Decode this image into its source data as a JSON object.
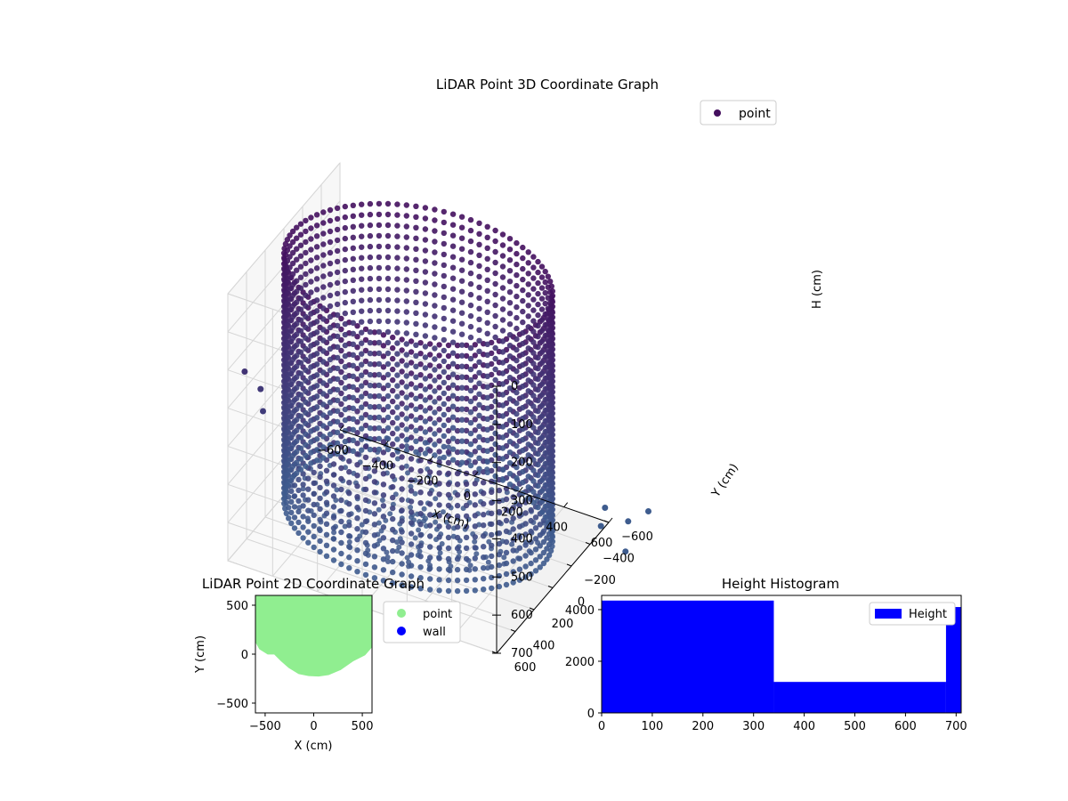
{
  "chart_data": [
    {
      "id": "lidar-3d",
      "type": "scatter",
      "title": "LiDAR Point 3D Coordinate Graph",
      "xlabel": "X (cm)",
      "ylabel": "Y (cm)",
      "zlabel": "H (cm)",
      "xlim": [
        -600,
        600
      ],
      "ylim": [
        -600,
        600
      ],
      "zlim": [
        0,
        700
      ],
      "z_inverted": true,
      "grid": true,
      "x_ticks": [
        "−600",
        "−400",
        "−200",
        "0",
        "200",
        "400",
        "600"
      ],
      "y_ticks": [
        "−600",
        "−400",
        "−200",
        "0",
        "200",
        "400",
        "600"
      ],
      "z_ticks": [
        "0",
        "100",
        "200",
        "300",
        "400",
        "500",
        "600",
        "700"
      ],
      "legend": {
        "placement": "top-right",
        "entries": [
          {
            "label": "point",
            "color": "#440f5e"
          }
        ]
      },
      "colormap": "viridis",
      "structure": {
        "wall_radius_cm": 560,
        "wall_height_range_cm": [
          0,
          650
        ],
        "floor_radius_range_cm": [
          0,
          560
        ],
        "note_points_color_top": "#440f5e",
        "note_points_color_bottom": "#3b5b8c"
      },
      "outliers": [
        {
          "x": 640,
          "y": -420,
          "h": 650
        },
        {
          "x": 720,
          "y": -520,
          "h": 650
        },
        {
          "x": 800,
          "y": -300,
          "h": 650
        },
        {
          "x": 760,
          "y": -640,
          "h": 650
        },
        {
          "x": 600,
          "y": -560,
          "h": 650
        },
        {
          "x": -650,
          "y": 300,
          "h": 300
        },
        {
          "x": -600,
          "y": 250,
          "h": 350
        },
        {
          "x": -560,
          "y": 320,
          "h": 380
        }
      ]
    },
    {
      "id": "lidar-2d",
      "type": "scatter",
      "title": "LiDAR Point 2D Coordinate Graph",
      "xlabel": "X (cm)",
      "ylabel": "Y (cm)",
      "xlim": [
        -600,
        600
      ],
      "ylim": [
        -600,
        600
      ],
      "x_ticks": [
        -500,
        0,
        500
      ],
      "y_ticks": [
        -500,
        0,
        500
      ],
      "legend": {
        "placement": "outside-right",
        "entries": [
          {
            "label": "point",
            "color": "#90ee90"
          },
          {
            "label": "wall",
            "color": "#0000ff"
          }
        ]
      },
      "region_boundary": [
        [
          -600,
          700
        ],
        [
          -600,
          150
        ],
        [
          -550,
          60
        ],
        [
          -470,
          10
        ],
        [
          -400,
          10
        ],
        [
          -330,
          -60
        ],
        [
          -250,
          -130
        ],
        [
          -150,
          -190
        ],
        [
          -50,
          -210
        ],
        [
          50,
          -215
        ],
        [
          150,
          -200
        ],
        [
          270,
          -150
        ],
        [
          400,
          -60
        ],
        [
          520,
          0
        ],
        [
          600,
          90
        ],
        [
          600,
          700
        ]
      ]
    },
    {
      "id": "height-histogram",
      "type": "bar",
      "title": "Height Histogram",
      "xlabel": "",
      "ylabel": "",
      "xlim": [
        0,
        710
      ],
      "ylim": [
        0,
        4550
      ],
      "x_ticks": [
        0,
        100,
        200,
        300,
        400,
        500,
        600,
        700
      ],
      "y_ticks": [
        0,
        2000,
        4000
      ],
      "bins": [
        {
          "x0": 0,
          "x1": 340,
          "count": 4350
        },
        {
          "x0": 340,
          "x1": 680,
          "count": 1200
        },
        {
          "x0": 680,
          "x1": 710,
          "count": 4100
        }
      ],
      "bar_color": "#0000ff",
      "legend": {
        "placement": "top-right",
        "entries": [
          {
            "label": "Height",
            "color": "#0000ff"
          }
        ]
      }
    }
  ]
}
